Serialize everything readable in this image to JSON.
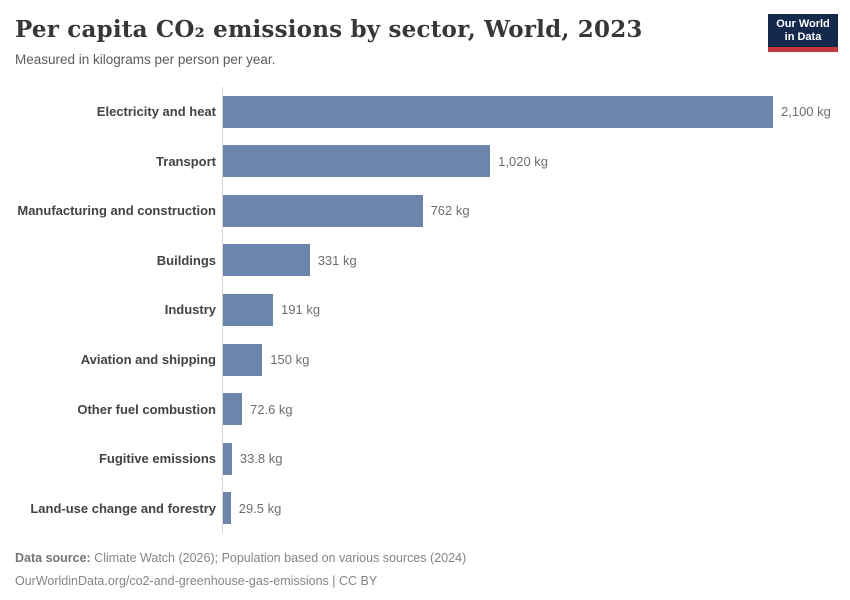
{
  "header": {
    "title": "Per capita CO₂ emissions by sector, World, 2023",
    "subtitle": "Measured in kilograms per person per year.",
    "logo": {
      "line1": "Our World",
      "line2": "in Data"
    }
  },
  "chart_data": {
    "type": "bar",
    "orientation": "horizontal",
    "title": "Per capita CO₂ emissions by sector, World, 2023",
    "subtitle": "Measured in kilograms per person per year.",
    "unit": "kg",
    "categories": [
      "Electricity and heat",
      "Transport",
      "Manufacturing and construction",
      "Buildings",
      "Industry",
      "Aviation and shipping",
      "Other fuel combustion",
      "Fugitive emissions",
      "Land-use change and forestry"
    ],
    "values": [
      2100,
      1020,
      762,
      331,
      191,
      150,
      72.6,
      33.8,
      29.5
    ],
    "value_labels": [
      "2,100 kg",
      "1,020 kg",
      "762 kg",
      "331 kg",
      "191 kg",
      "150 kg",
      "72.6 kg",
      "33.8 kg",
      "29.5 kg"
    ],
    "xlim": [
      0,
      2100
    ],
    "grid": false,
    "legend": "none"
  },
  "colors": {
    "bar": "#6c85ad",
    "logo_background": "#142a4c",
    "logo_accent": "#c0393b",
    "axis_line": "#d5d5d5"
  },
  "footer": {
    "datasource_label": "Data source:",
    "datasource_text": " Climate Watch (2026); Population based on various sources (2024)",
    "license_line": "OurWorldinData.org/co2-and-greenhouse-gas-emissions | CC BY"
  }
}
